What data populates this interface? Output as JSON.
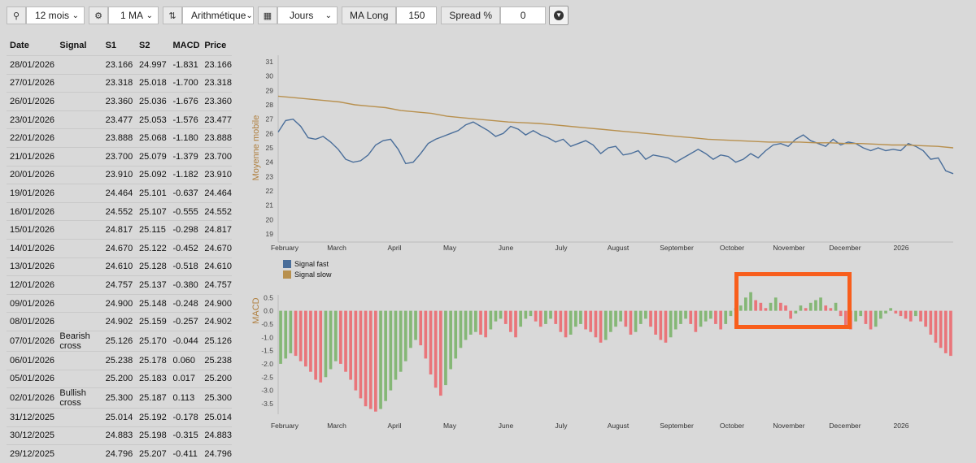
{
  "toolbar": {
    "period_icon": "pin-icon",
    "period": "12 mois",
    "ma_icon": "gears-icon",
    "ma": "1 MA",
    "scale_icon": "sort-icon",
    "scale": "Arithmétique",
    "interval_icon": "calendar-icon",
    "interval": "Jours",
    "ma_long_label": "MA Long",
    "ma_long_value": "150",
    "spread_label": "Spread %",
    "spread_value": "0",
    "go_icon": "arrow-down-circle-icon"
  },
  "table": {
    "headers": [
      "Date",
      "Signal",
      "S1",
      "S2",
      "MACD",
      "Price"
    ],
    "rows": [
      [
        "28/01/2026",
        "",
        "23.166",
        "24.997",
        "-1.831",
        "23.166"
      ],
      [
        "27/01/2026",
        "",
        "23.318",
        "25.018",
        "-1.700",
        "23.318"
      ],
      [
        "26/01/2026",
        "",
        "23.360",
        "25.036",
        "-1.676",
        "23.360"
      ],
      [
        "23/01/2026",
        "",
        "23.477",
        "25.053",
        "-1.576",
        "23.477"
      ],
      [
        "22/01/2026",
        "",
        "23.888",
        "25.068",
        "-1.180",
        "23.888"
      ],
      [
        "21/01/2026",
        "",
        "23.700",
        "25.079",
        "-1.379",
        "23.700"
      ],
      [
        "20/01/2026",
        "",
        "23.910",
        "25.092",
        "-1.182",
        "23.910"
      ],
      [
        "19/01/2026",
        "",
        "24.464",
        "25.101",
        "-0.637",
        "24.464"
      ],
      [
        "16/01/2026",
        "",
        "24.552",
        "25.107",
        "-0.555",
        "24.552"
      ],
      [
        "15/01/2026",
        "",
        "24.817",
        "25.115",
        "-0.298",
        "24.817"
      ],
      [
        "14/01/2026",
        "",
        "24.670",
        "25.122",
        "-0.452",
        "24.670"
      ],
      [
        "13/01/2026",
        "",
        "24.610",
        "25.128",
        "-0.518",
        "24.610"
      ],
      [
        "12/01/2026",
        "",
        "24.757",
        "25.137",
        "-0.380",
        "24.757"
      ],
      [
        "09/01/2026",
        "",
        "24.900",
        "25.148",
        "-0.248",
        "24.900"
      ],
      [
        "08/01/2026",
        "",
        "24.902",
        "25.159",
        "-0.257",
        "24.902"
      ],
      [
        "07/01/2026",
        "Bearish cross",
        "25.126",
        "25.170",
        "-0.044",
        "25.126"
      ],
      [
        "06/01/2026",
        "",
        "25.238",
        "25.178",
        "0.060",
        "25.238"
      ],
      [
        "05/01/2026",
        "",
        "25.200",
        "25.183",
        "0.017",
        "25.200"
      ],
      [
        "02/01/2026",
        "Bullish cross",
        "25.300",
        "25.187",
        "0.113",
        "25.300"
      ],
      [
        "31/12/2025",
        "",
        "25.014",
        "25.192",
        "-0.178",
        "25.014"
      ],
      [
        "30/12/2025",
        "",
        "24.883",
        "25.198",
        "-0.315",
        "24.883"
      ],
      [
        "29/12/2025",
        "",
        "24.796",
        "25.207",
        "-0.411",
        "24.796"
      ]
    ]
  },
  "chart_data": [
    {
      "type": "line",
      "ylabel": "Moyenne mobile",
      "ylim": [
        19,
        31
      ],
      "yticks": [
        19,
        20,
        21,
        22,
        23,
        24,
        25,
        26,
        27,
        28,
        29,
        30,
        31
      ],
      "months": [
        "February",
        "March",
        "April",
        "May",
        "June",
        "July",
        "August",
        "September",
        "October",
        "November",
        "December",
        "2026"
      ],
      "grid": false,
      "legend": "bottom-left",
      "series": [
        {
          "name": "Signal fast",
          "color": "#4a6e9a",
          "values": [
            26.1,
            26.9,
            27.0,
            26.5,
            25.7,
            25.6,
            25.8,
            25.4,
            24.9,
            24.2,
            24.0,
            24.1,
            24.5,
            25.2,
            25.5,
            25.6,
            24.9,
            23.9,
            24.0,
            24.6,
            25.3,
            25.6,
            25.8,
            26.0,
            26.2,
            26.6,
            26.8,
            26.5,
            26.2,
            25.8,
            26.0,
            26.5,
            26.3,
            25.9,
            26.2,
            25.9,
            25.7,
            25.4,
            25.6,
            25.1,
            25.3,
            25.5,
            25.2,
            24.6,
            25.0,
            25.1,
            24.5,
            24.6,
            24.8,
            24.2,
            24.5,
            24.4,
            24.3,
            24.0,
            24.3,
            24.6,
            24.9,
            24.6,
            24.2,
            24.5,
            24.4,
            24.0,
            24.2,
            24.6,
            24.3,
            24.8,
            25.2,
            25.3,
            25.1,
            25.6,
            25.9,
            25.5,
            25.3,
            25.1,
            25.6,
            25.2,
            25.4,
            25.3,
            25.0,
            24.8,
            25.0,
            24.8,
            24.9,
            24.8,
            25.3,
            25.1,
            24.8,
            24.2,
            24.3,
            23.4,
            23.2
          ]
        },
        {
          "name": "Signal slow",
          "color": "#b8904e",
          "values": [
            28.6,
            28.5,
            28.4,
            28.3,
            28.2,
            28.0,
            27.9,
            27.8,
            27.6,
            27.5,
            27.4,
            27.2,
            27.1,
            27.0,
            26.9,
            26.8,
            26.75,
            26.7,
            26.6,
            26.5,
            26.4,
            26.3,
            26.2,
            26.1,
            26.0,
            25.9,
            25.8,
            25.7,
            25.6,
            25.55,
            25.5,
            25.45,
            25.4,
            25.4,
            25.4,
            25.35,
            25.35,
            25.3,
            25.3,
            25.25,
            25.2,
            25.2,
            25.15,
            25.1,
            25.0
          ]
        }
      ]
    },
    {
      "type": "bar",
      "ylabel": "MACD",
      "ylim": [
        -3.9,
        0.6
      ],
      "yticks": [
        0.5,
        0.0,
        -0.5,
        -1.0,
        -1.5,
        -2.0,
        -2.5,
        -3.0,
        -3.5
      ],
      "months": [
        "February",
        "March",
        "April",
        "May",
        "June",
        "July",
        "August",
        "September",
        "October",
        "November",
        "December",
        "2026"
      ],
      "positive_color": "#85b776",
      "negative_color": "#e9757a",
      "values": [
        -2.0,
        -1.8,
        -1.6,
        -1.7,
        -1.9,
        -2.1,
        -2.3,
        -2.6,
        -2.7,
        -2.5,
        -2.2,
        -1.9,
        -2.0,
        -2.3,
        -2.6,
        -3.0,
        -3.3,
        -3.6,
        -3.7,
        -3.8,
        -3.7,
        -3.4,
        -3.0,
        -2.6,
        -2.3,
        -1.9,
        -1.4,
        -1.1,
        -1.3,
        -1.8,
        -2.4,
        -2.9,
        -3.2,
        -2.8,
        -2.2,
        -1.8,
        -1.4,
        -1.1,
        -0.9,
        -0.8,
        -0.9,
        -1.0,
        -0.7,
        -0.4,
        -0.3,
        -0.5,
        -0.8,
        -1.0,
        -0.6,
        -0.3,
        -0.2,
        -0.4,
        -0.6,
        -0.5,
        -0.3,
        -0.5,
        -0.8,
        -1.0,
        -0.9,
        -0.6,
        -0.5,
        -0.7,
        -0.8,
        -1.0,
        -1.2,
        -1.1,
        -0.8,
        -0.6,
        -0.4,
        -0.6,
        -0.9,
        -0.8,
        -0.5,
        -0.3,
        -0.6,
        -0.9,
        -1.1,
        -1.2,
        -1.0,
        -0.7,
        -0.5,
        -0.3,
        -0.5,
        -0.8,
        -0.6,
        -0.4,
        -0.3,
        -0.5,
        -0.7,
        -0.5,
        -0.2,
        0.1,
        0.2,
        0.5,
        0.7,
        0.4,
        0.3,
        0.1,
        0.3,
        0.5,
        0.3,
        0.2,
        -0.3,
        -0.1,
        0.2,
        0.1,
        0.3,
        0.4,
        0.5,
        0.2,
        0.1,
        0.3,
        -0.2,
        -0.6,
        -0.7,
        -0.4,
        -0.2,
        -0.5,
        -0.7,
        -0.6,
        -0.3,
        -0.1,
        0.1,
        -0.1,
        -0.2,
        -0.3,
        -0.4,
        -0.2,
        -0.4,
        -0.6,
        -0.9,
        -1.2,
        -1.4,
        -1.6,
        -1.7
      ]
    }
  ]
}
